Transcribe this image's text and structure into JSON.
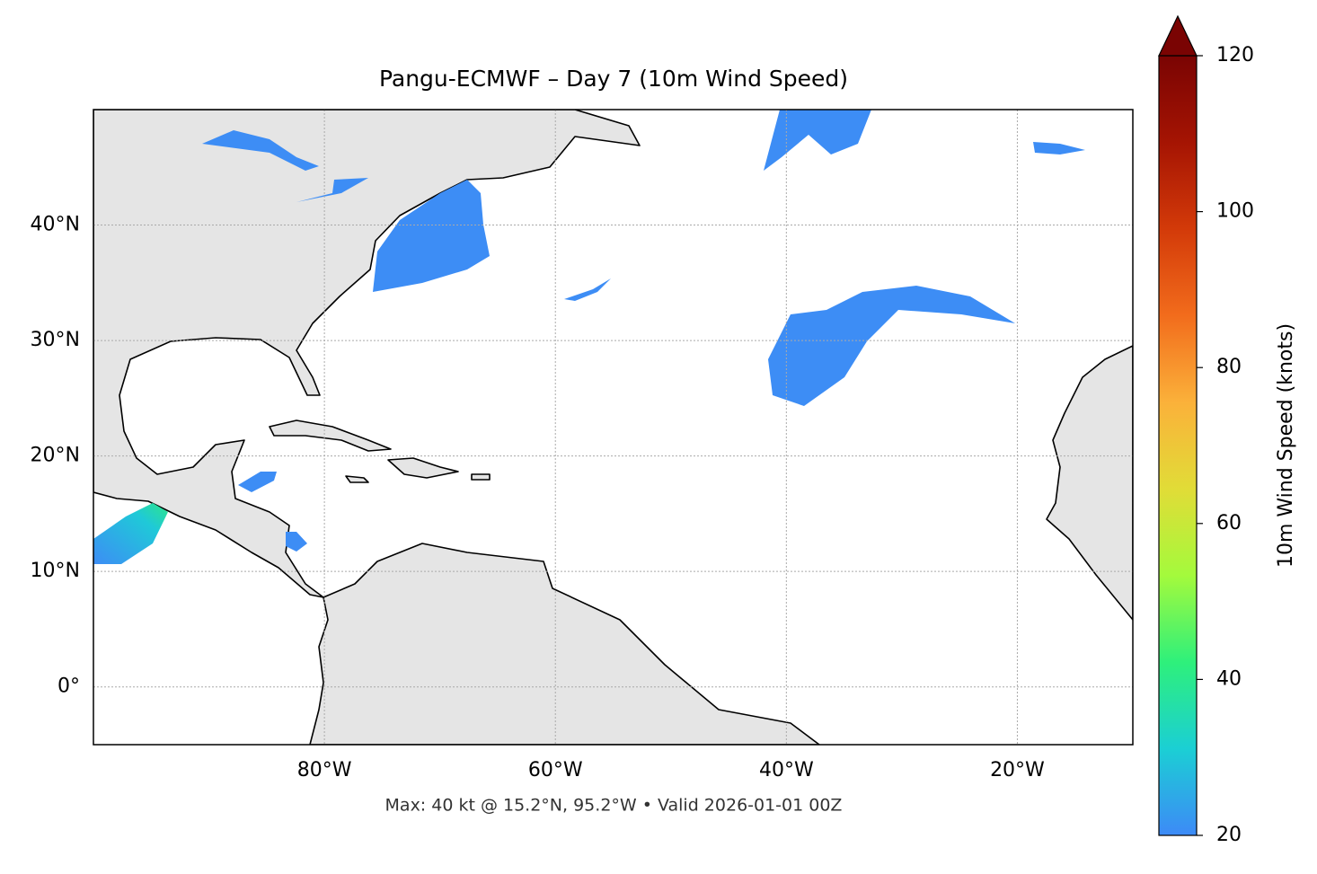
{
  "chart_data": {
    "type": "map",
    "title": "Pangu-ECMWF – Day 7 (10m Wind Speed)",
    "footer": "Max: 40 kt @ 15.2°N, 95.2°W • Valid 2026-01-01 00Z",
    "xlim": [
      -100,
      -10
    ],
    "ylim": [
      -5,
      50
    ],
    "xticks": [
      {
        "value": -80,
        "label": "80°W"
      },
      {
        "value": -60,
        "label": "60°W"
      },
      {
        "value": -40,
        "label": "40°W"
      },
      {
        "value": -20,
        "label": "20°W"
      }
    ],
    "yticks": [
      {
        "value": 0,
        "label": "0°"
      },
      {
        "value": 10,
        "label": "10°N"
      },
      {
        "value": 20,
        "label": "20°N"
      },
      {
        "value": 30,
        "label": "30°N"
      },
      {
        "value": 40,
        "label": "40°N"
      }
    ],
    "grid": true,
    "colorbar": {
      "label": "10m Wind Speed (knots)",
      "lim": [
        20,
        120
      ],
      "ticks": [
        20,
        40,
        60,
        80,
        100,
        120
      ],
      "colormap": [
        "#3d8af7",
        "#1bcfd4",
        "#2ef07b",
        "#a4fa3c",
        "#e1dc37",
        "#fbb13a",
        "#f26c1c",
        "#d33a09",
        "#a51403",
        "#7a0403"
      ],
      "extend": "max"
    }
  }
}
